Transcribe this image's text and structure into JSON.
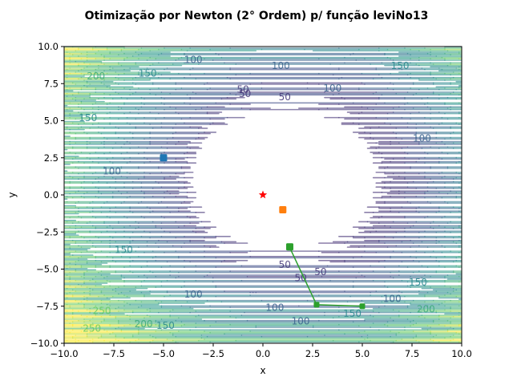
{
  "chart_data": {
    "type": "contour",
    "title": "Otimização por Newton (2° Ordem) p/ função leviNo13",
    "xlabel": "x",
    "ylabel": "y",
    "xlim": [
      -10,
      10
    ],
    "ylim": [
      -10,
      10
    ],
    "xticks": [
      "−10.0",
      "−7.5",
      "−5.0",
      "−2.5",
      "0.0",
      "2.5",
      "5.0",
      "7.5",
      "10.0"
    ],
    "yticks": [
      "−10.0",
      "−7.5",
      "−5.0",
      "−2.5",
      "0.0",
      "2.5",
      "5.0",
      "7.5",
      "10.0"
    ],
    "tick_values": [
      -10,
      -7.5,
      -5,
      -2.5,
      0,
      2.5,
      5,
      7.5,
      10
    ],
    "contour_levels": [
      50,
      100,
      150,
      200,
      250,
      300
    ],
    "contour_labels": [
      {
        "text": "50",
        "x": 1.1,
        "y": -4.7
      },
      {
        "text": "50",
        "x": 2.9,
        "y": -5.2
      },
      {
        "text": "50",
        "x": 1.9,
        "y": -5.6
      },
      {
        "text": "50",
        "x": -1.0,
        "y": 7.1
      },
      {
        "text": "50",
        "x": -0.9,
        "y": 6.8
      },
      {
        "text": "50",
        "x": 1.1,
        "y": 6.6
      },
      {
        "text": "100",
        "x": -3.5,
        "y": -6.7
      },
      {
        "text": "100",
        "x": 0.6,
        "y": -7.6
      },
      {
        "text": "100",
        "x": 1.9,
        "y": -8.5
      },
      {
        "text": "100",
        "x": 6.5,
        "y": -7.0
      },
      {
        "text": "100",
        "x": -7.6,
        "y": 1.6
      },
      {
        "text": "100",
        "x": 8.0,
        "y": 3.8
      },
      {
        "text": "100",
        "x": 0.9,
        "y": 8.7
      },
      {
        "text": "100",
        "x": -3.5,
        "y": 9.1
      },
      {
        "text": "100",
        "x": 3.5,
        "y": 7.2
      },
      {
        "text": "150",
        "x": -4.9,
        "y": -8.8
      },
      {
        "text": "150",
        "x": -7.0,
        "y": -3.7
      },
      {
        "text": "150",
        "x": 7.8,
        "y": -5.9
      },
      {
        "text": "150",
        "x": 4.5,
        "y": -8.0
      },
      {
        "text": "150",
        "x": 6.9,
        "y": 8.7
      },
      {
        "text": "150",
        "x": -5.8,
        "y": 8.2
      },
      {
        "text": "150",
        "x": -8.8,
        "y": 5.2
      },
      {
        "text": "200",
        "x": -6.0,
        "y": -8.7
      },
      {
        "text": "200",
        "x": 8.2,
        "y": -7.7
      },
      {
        "text": "200",
        "x": -8.4,
        "y": 8.0
      },
      {
        "text": "250",
        "x": -8.1,
        "y": -7.8
      },
      {
        "text": "250",
        "x": -8.6,
        "y": -9.0
      }
    ],
    "series": [
      {
        "color": "#1f77b4",
        "points": [
          {
            "x": -5.0,
            "y": 2.5
          }
        ]
      },
      {
        "color": "#ff7f0e",
        "points": [
          {
            "x": 1.0,
            "y": -1.0
          }
        ]
      },
      {
        "color": "#2ca02c",
        "points": [
          {
            "x": 5.0,
            "y": -7.5
          },
          {
            "x": 2.7,
            "y": -7.4
          },
          {
            "x": 1.35,
            "y": -3.55
          },
          {
            "x": 1.35,
            "y": -3.5
          }
        ]
      }
    ],
    "optimum": {
      "x": 0,
      "y": 0,
      "color": "#ff0000",
      "marker": "star"
    },
    "grid": false
  }
}
